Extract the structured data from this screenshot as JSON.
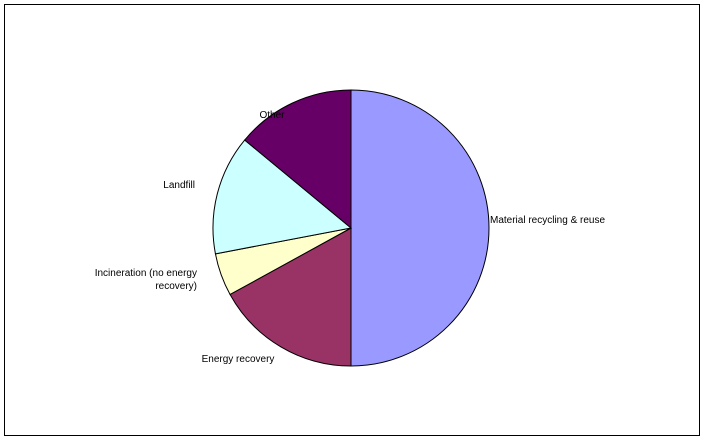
{
  "chart_data": {
    "type": "pie",
    "title": "",
    "legend": "none",
    "start_angle_deg": 0,
    "direction": "clockwise",
    "slices": [
      {
        "label": "Material recycling & reuse",
        "label_lines": [
          "Material recycling & reuse"
        ],
        "value": 50,
        "color": "#9999ff"
      },
      {
        "label": "Energy recovery",
        "label_lines": [
          "Energy recovery"
        ],
        "value": 17,
        "color": "#993366"
      },
      {
        "label": "Incineration (no energy recovery)",
        "label_lines": [
          "Incineration (no energy",
          "recovery)"
        ],
        "value": 5,
        "color": "#ffffcc"
      },
      {
        "label": "Landfill",
        "label_lines": [
          "Landfill"
        ],
        "value": 14,
        "color": "#ccffff"
      },
      {
        "label": "Other",
        "label_lines": [
          "Other"
        ],
        "value": 14,
        "color": "#660066"
      }
    ]
  }
}
